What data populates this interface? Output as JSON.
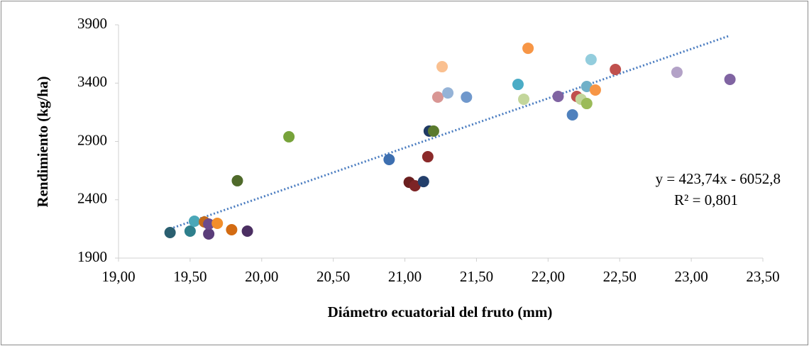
{
  "chart_data": {
    "type": "scatter",
    "x_label": "Diámetro ecuatorial del fruto (mm)",
    "y_label": "Rendimiento (kg/ha)",
    "x": [
      19.36,
      19.5,
      19.53,
      19.6,
      19.63,
      19.63,
      19.69,
      19.79,
      19.9,
      19.83,
      20.19,
      20.89,
      21.03,
      21.07,
      21.13,
      21.16,
      21.17,
      21.2,
      21.23,
      21.26,
      21.3,
      21.43,
      21.79,
      21.83,
      21.86,
      22.07,
      22.17,
      22.2,
      22.23,
      22.27,
      22.27,
      22.3,
      22.33,
      22.47,
      22.9,
      23.27
    ],
    "values": [
      2119,
      2131,
      2216,
      2210,
      2107,
      2192,
      2198,
      2143,
      2131,
      2563,
      2940,
      2745,
      2550,
      2520,
      2556,
      2769,
      2989,
      2989,
      3280,
      3541,
      3316,
      3280,
      3389,
      3262,
      3699,
      3286,
      3128,
      3286,
      3262,
      3225,
      3371,
      3602,
      3341,
      3517,
      3493,
      3432
    ],
    "colors": [
      "#2a5f70",
      "#2e7f8c",
      "#4aa7b8",
      "#c46a1a",
      "#5a3d7a",
      "#6b4b8c",
      "#f28e2b",
      "#d36b12",
      "#4b2f62",
      "#4f6a2a",
      "#77a33a",
      "#3d6fb0",
      "#6b1f1f",
      "#7d2426",
      "#233f6b",
      "#8b2a2a",
      "#1f3a63",
      "#5a7a2e",
      "#d99694",
      "#fac090",
      "#95b3d7",
      "#7098cc",
      "#4bacc6",
      "#c3d69b",
      "#f79646",
      "#8064a2",
      "#4f81bd",
      "#c0504d",
      "#c3d69b",
      "#9bbb59",
      "#70b0c8",
      "#93cddd",
      "#f79646",
      "#c0504d",
      "#b3a2c7",
      "#8064a2"
    ],
    "xlim": [
      19,
      23.5
    ],
    "ylim": [
      1900,
      3900
    ],
    "xticks": [
      {
        "value": 19,
        "label": "19,00"
      },
      {
        "value": 19.5,
        "label": "19,50"
      },
      {
        "value": 20,
        "label": "20,00"
      },
      {
        "value": 20.5,
        "label": "20,50"
      },
      {
        "value": 21,
        "label": "21,00"
      },
      {
        "value": 21.5,
        "label": "21,50"
      },
      {
        "value": 22,
        "label": "22,00"
      },
      {
        "value": 22.5,
        "label": "22,50"
      },
      {
        "value": 23,
        "label": "23,00"
      },
      {
        "value": 23.5,
        "label": "23,50"
      }
    ],
    "yticks": [
      1900,
      2400,
      2900,
      3400,
      3900
    ],
    "trendline": {
      "slope": 423.74,
      "intercept": -6052.8,
      "color": "#4a7cc0",
      "equation": "y = 423,74x - 6052,8",
      "r2": "R² = 0,801"
    }
  }
}
